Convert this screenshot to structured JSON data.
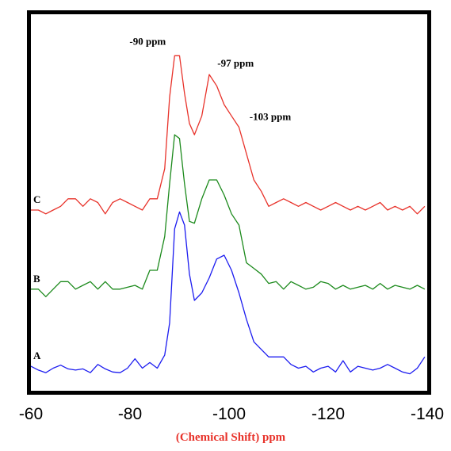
{
  "chart_data": {
    "type": "line",
    "title": "",
    "xlabel_parts": [
      {
        "text": "(Chemical Shift)",
        "color": "#e8322a"
      },
      {
        "text": " ppm",
        "color": "#e8322a"
      }
    ],
    "ylabel": "",
    "xlim": [
      -60,
      -140
    ],
    "ylim": [
      0,
      1
    ],
    "x_ticks": [
      -60,
      -80,
      -100,
      -120,
      -140
    ],
    "x_tick_labels": [
      "-60",
      "-80",
      "-100",
      "-120",
      "-140"
    ],
    "grid": false,
    "legend": "none",
    "x": [
      -60,
      -61.5,
      -63,
      -64.5,
      -66,
      -67.5,
      -69,
      -70.5,
      -72,
      -73.5,
      -75,
      -76.5,
      -78,
      -79.5,
      -81,
      -82.5,
      -84,
      -85.5,
      -87,
      -88,
      -89,
      -90,
      -91,
      -92,
      -93,
      -94.5,
      -96,
      -97.5,
      -99,
      -100.5,
      -102,
      -103.5,
      -105,
      -106.5,
      -108,
      -109.5,
      -111,
      -112.5,
      -114,
      -115.5,
      -117,
      -118.5,
      -120,
      -121.5,
      -123,
      -124.5,
      -126,
      -127.5,
      -129,
      -130.5,
      -132,
      -133.5,
      -135,
      -136.5,
      -138,
      -139.5
    ],
    "series": [
      {
        "name": "A",
        "color": "#1c1cf0",
        "values": [
          0.065,
          0.055,
          0.048,
          0.06,
          0.068,
          0.058,
          0.055,
          0.058,
          0.048,
          0.07,
          0.058,
          0.05,
          0.048,
          0.06,
          0.085,
          0.06,
          0.075,
          0.06,
          0.095,
          0.18,
          0.43,
          0.475,
          0.44,
          0.31,
          0.24,
          0.26,
          0.3,
          0.35,
          0.36,
          0.32,
          0.26,
          0.19,
          0.13,
          0.11,
          0.09,
          0.09,
          0.09,
          0.07,
          0.06,
          0.065,
          0.05,
          0.06,
          0.065,
          0.05,
          0.08,
          0.05,
          0.065,
          0.06,
          0.055,
          0.06,
          0.07,
          0.06,
          0.05,
          0.045,
          0.06,
          0.09
        ]
      },
      {
        "name": "B",
        "color": "#1c8a1c",
        "values": [
          0.27,
          0.27,
          0.25,
          0.27,
          0.29,
          0.29,
          0.27,
          0.28,
          0.29,
          0.27,
          0.29,
          0.27,
          0.27,
          0.275,
          0.28,
          0.27,
          0.32,
          0.32,
          0.41,
          0.55,
          0.68,
          0.67,
          0.55,
          0.45,
          0.445,
          0.51,
          0.56,
          0.56,
          0.52,
          0.47,
          0.44,
          0.34,
          0.325,
          0.31,
          0.285,
          0.29,
          0.27,
          0.29,
          0.28,
          0.27,
          0.275,
          0.29,
          0.285,
          0.27,
          0.28,
          0.27,
          0.275,
          0.28,
          0.27,
          0.285,
          0.27,
          0.28,
          0.275,
          0.27,
          0.28,
          0.27
        ]
      },
      {
        "name": "C",
        "color": "#e8322a",
        "values": [
          0.48,
          0.48,
          0.47,
          0.48,
          0.49,
          0.51,
          0.51,
          0.49,
          0.51,
          0.5,
          0.47,
          0.5,
          0.51,
          0.5,
          0.49,
          0.48,
          0.51,
          0.51,
          0.59,
          0.78,
          0.89,
          0.89,
          0.79,
          0.71,
          0.68,
          0.73,
          0.84,
          0.81,
          0.76,
          0.73,
          0.7,
          0.63,
          0.56,
          0.53,
          0.49,
          0.5,
          0.51,
          0.5,
          0.49,
          0.5,
          0.49,
          0.48,
          0.49,
          0.5,
          0.49,
          0.48,
          0.49,
          0.48,
          0.49,
          0.5,
          0.48,
          0.49,
          0.48,
          0.49,
          0.47,
          0.49
        ]
      }
    ],
    "series_labels": [
      "A",
      "B",
      "C"
    ],
    "annotations": [
      {
        "text": "-90 ppm",
        "x": -89.5,
        "y": 0.89
      },
      {
        "text": "-97 ppm",
        "x": -97.0,
        "y": 0.84
      },
      {
        "text": "-103 ppm",
        "x": -103.0,
        "y": 0.73
      }
    ]
  }
}
